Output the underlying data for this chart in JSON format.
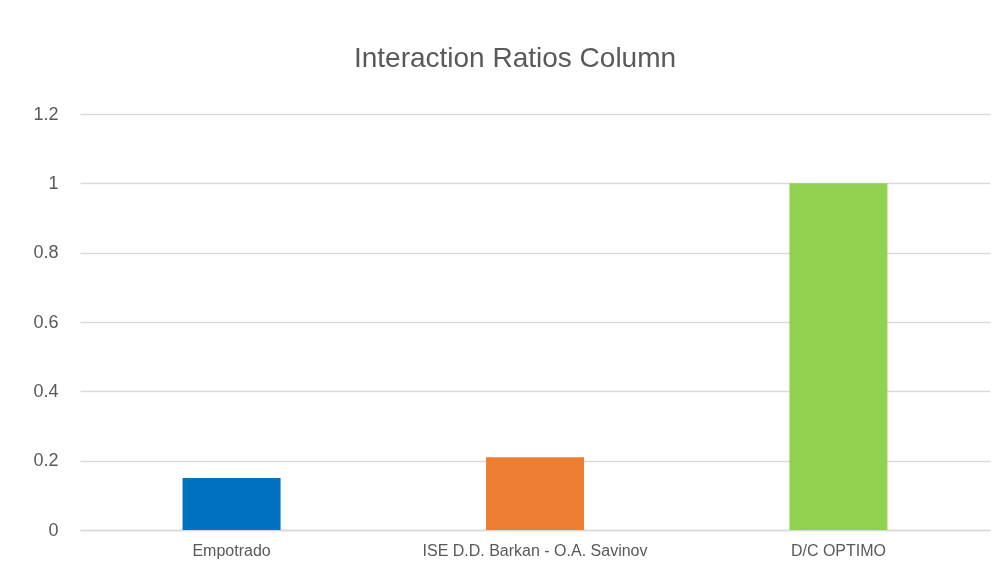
{
  "chart_data": {
    "type": "bar",
    "title": "Interaction Ratios Column",
    "categories": [
      "Empotrado",
      "ISE D.D. Barkan - O.A. Savinov",
      "D/C OPTIMO"
    ],
    "values": [
      0.15,
      0.21,
      1
    ],
    "colors": [
      "#0070c0",
      "#ed7d31",
      "#92d050"
    ],
    "ylim": [
      0,
      1.2
    ],
    "yticks": [
      0,
      0.2,
      0.4,
      0.6,
      0.8,
      1,
      1.2
    ],
    "grid": "y"
  }
}
